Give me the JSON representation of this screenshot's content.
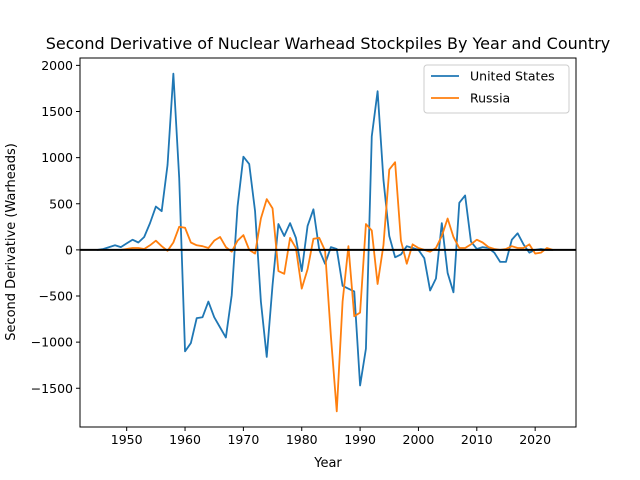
{
  "chart_data": {
    "type": "line",
    "title": "Second Derivative of Nuclear Warhead Stockpiles By Year and Country",
    "xlabel": "Year",
    "ylabel": "Second Derivative (Warheads)",
    "xlim": [
      1942,
      2027
    ],
    "ylim": [
      -1920,
      2080
    ],
    "xticks": [
      1950,
      1960,
      1970,
      1980,
      1990,
      2000,
      2010,
      2020
    ],
    "yticks": [
      -1500,
      -1000,
      -500,
      0,
      500,
      1000,
      1500,
      2000
    ],
    "zero_line": true,
    "legend": {
      "position": "top-right"
    },
    "grid": false,
    "series": [
      {
        "name": "United States",
        "color": "#1f77b4",
        "x": [
          1945,
          1946,
          1947,
          1948,
          1949,
          1950,
          1951,
          1952,
          1953,
          1954,
          1955,
          1956,
          1957,
          1958,
          1959,
          1960,
          1961,
          1962,
          1963,
          1964,
          1965,
          1966,
          1967,
          1968,
          1969,
          1970,
          1971,
          1972,
          1973,
          1974,
          1975,
          1976,
          1977,
          1978,
          1979,
          1980,
          1981,
          1982,
          1983,
          1984,
          1985,
          1986,
          1987,
          1988,
          1989,
          1990,
          1991,
          1992,
          1993,
          1994,
          1995,
          1996,
          1997,
          1998,
          1999,
          2000,
          2001,
          2002,
          2003,
          2004,
          2005,
          2006,
          2007,
          2008,
          2009,
          2010,
          2011,
          2012,
          2013,
          2014,
          2015,
          2016,
          2017,
          2018,
          2019,
          2020,
          2021,
          2022,
          2023
        ],
        "y": [
          0,
          10,
          30,
          50,
          30,
          70,
          110,
          80,
          140,
          290,
          470,
          420,
          920,
          1910,
          780,
          -1100,
          -1010,
          -740,
          -730,
          -560,
          -730,
          -840,
          -950,
          -490,
          470,
          1010,
          930,
          420,
          -560,
          -1160,
          -380,
          280,
          150,
          290,
          130,
          -230,
          260,
          440,
          0,
          -150,
          30,
          10,
          -390,
          -420,
          -450,
          -1470,
          -1070,
          1230,
          1720,
          760,
          150,
          -80,
          -50,
          40,
          20,
          0,
          -90,
          -440,
          -310,
          290,
          -250,
          -460,
          510,
          590,
          90,
          10,
          30,
          20,
          -30,
          -130,
          -130,
          110,
          180,
          60,
          -30,
          0,
          10,
          0,
          0
        ]
      },
      {
        "name": "Russia",
        "color": "#ff7f0e",
        "x": [
          1949,
          1950,
          1951,
          1952,
          1953,
          1954,
          1955,
          1956,
          1957,
          1958,
          1959,
          1960,
          1961,
          1962,
          1963,
          1964,
          1965,
          1966,
          1967,
          1968,
          1969,
          1970,
          1971,
          1972,
          1973,
          1974,
          1975,
          1976,
          1977,
          1978,
          1979,
          1980,
          1981,
          1982,
          1983,
          1984,
          1985,
          1986,
          1987,
          1988,
          1989,
          1990,
          1991,
          1992,
          1993,
          1994,
          1995,
          1996,
          1997,
          1998,
          1999,
          2000,
          2001,
          2002,
          2003,
          2004,
          2005,
          2006,
          2007,
          2008,
          2009,
          2010,
          2011,
          2012,
          2013,
          2014,
          2015,
          2016,
          2017,
          2018,
          2019,
          2020,
          2021,
          2022,
          2023
        ],
        "y": [
          0,
          10,
          20,
          20,
          10,
          50,
          100,
          40,
          -10,
          80,
          250,
          240,
          80,
          50,
          40,
          20,
          100,
          140,
          30,
          -20,
          100,
          160,
          0,
          -40,
          340,
          550,
          450,
          -230,
          -260,
          130,
          20,
          -420,
          -210,
          120,
          130,
          -10,
          -940,
          -1750,
          -560,
          40,
          -720,
          -680,
          280,
          210,
          -370,
          50,
          870,
          950,
          100,
          -150,
          60,
          20,
          0,
          -20,
          20,
          150,
          340,
          140,
          20,
          20,
          60,
          110,
          80,
          30,
          10,
          0,
          10,
          40,
          20,
          20,
          60,
          -40,
          -30,
          20,
          0
        ]
      }
    ]
  }
}
